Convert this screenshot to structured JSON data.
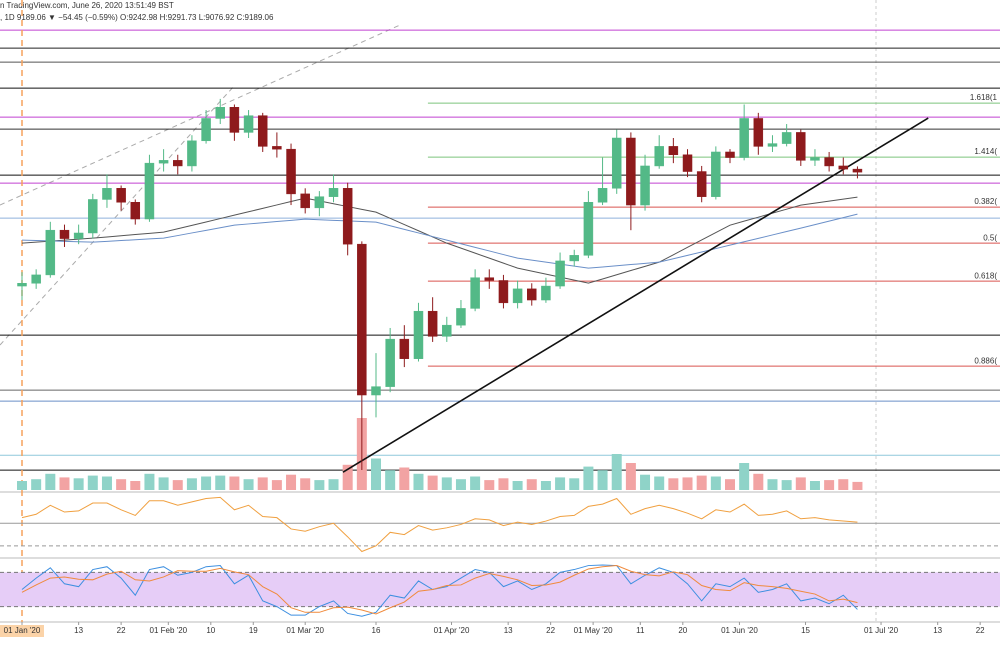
{
  "chart_data": {
    "type": "candlestick",
    "title": "n TradingView.com, June 26, 2020 13:51:49 BST",
    "subtitle": ", 1D  9189.06 ▼ −54.45 (−0.59%) O:9242.98 H:9291.73 L:9076.92 C:9189.06",
    "x": [
      "2020-01-01",
      "2020-01-04",
      "2020-01-07",
      "2020-01-10",
      "2020-01-13",
      "2020-01-16",
      "2020-01-19",
      "2020-01-22",
      "2020-01-25",
      "2020-01-28",
      "2020-01-31",
      "2020-02-03",
      "2020-02-06",
      "2020-02-09",
      "2020-02-12",
      "2020-02-15",
      "2020-02-18",
      "2020-02-21",
      "2020-02-24",
      "2020-02-27",
      "2020-03-01",
      "2020-03-04",
      "2020-03-07",
      "2020-03-10",
      "2020-03-13",
      "2020-03-16",
      "2020-03-19",
      "2020-03-22",
      "2020-03-25",
      "2020-03-28",
      "2020-03-31",
      "2020-04-03",
      "2020-04-06",
      "2020-04-09",
      "2020-04-12",
      "2020-04-15",
      "2020-04-18",
      "2020-04-21",
      "2020-04-24",
      "2020-04-27",
      "2020-04-30",
      "2020-05-03",
      "2020-05-06",
      "2020-05-09",
      "2020-05-12",
      "2020-05-15",
      "2020-05-18",
      "2020-05-21",
      "2020-05-24",
      "2020-05-27",
      "2020-05-30",
      "2020-06-02",
      "2020-06-05",
      "2020-06-08",
      "2020-06-11",
      "2020-06-14",
      "2020-06-17",
      "2020-06-20",
      "2020-06-23",
      "2020-06-26"
    ],
    "open": [
      7150,
      7200,
      7350,
      8150,
      8000,
      8100,
      8700,
      8900,
      8650,
      8350,
      9350,
      9400,
      9300,
      9750,
      10150,
      10350,
      9900,
      10200,
      9650,
      9600,
      8800,
      8550,
      8750,
      8900,
      7900,
      5200,
      5350,
      6200,
      5850,
      6700,
      6250,
      6450,
      6750,
      7300,
      7250,
      6850,
      7100,
      6900,
      7150,
      7600,
      7700,
      8650,
      8900,
      9800,
      8600,
      9300,
      9650,
      9500,
      9200,
      8750,
      9550,
      9450,
      10150,
      9650,
      9700,
      9900,
      9400,
      9450,
      9300,
      9242.98
    ],
    "high": [
      7400,
      7450,
      8300,
      8250,
      8250,
      8800,
      9150,
      8950,
      8700,
      9500,
      9600,
      9500,
      9850,
      10300,
      10500,
      10400,
      10300,
      10250,
      9900,
      9700,
      8900,
      8850,
      9150,
      9000,
      7950,
      5950,
      6400,
      6450,
      6850,
      6950,
      6600,
      6900,
      7450,
      7450,
      7350,
      7250,
      7200,
      7300,
      7750,
      7800,
      8850,
      9450,
      9950,
      9900,
      9500,
      9850,
      9800,
      9600,
      9300,
      9650,
      9600,
      10400,
      10250,
      9850,
      10050,
      9950,
      9600,
      9550,
      9450,
      9291.73
    ],
    "low": [
      6900,
      7100,
      7300,
      7850,
      7900,
      8000,
      8550,
      8500,
      8250,
      8300,
      9200,
      9150,
      9200,
      9700,
      10050,
      9750,
      9800,
      9550,
      9450,
      8600,
      8450,
      8400,
      8650,
      7700,
      3858,
      4800,
      5250,
      5700,
      5800,
      6150,
      6150,
      6400,
      6700,
      7100,
      6750,
      6750,
      6800,
      6850,
      7100,
      7500,
      7650,
      8600,
      8800,
      8150,
      8500,
      9250,
      9350,
      9100,
      8650,
      8700,
      9350,
      9400,
      9500,
      9550,
      9650,
      9300,
      9300,
      9200,
      9150,
      9076.92
    ],
    "close": [
      7200,
      7350,
      8150,
      8000,
      8100,
      8700,
      8900,
      8650,
      8350,
      9350,
      9400,
      9300,
      9750,
      10150,
      10350,
      9900,
      10200,
      9650,
      9600,
      8800,
      8550,
      8750,
      8900,
      7900,
      5200,
      5350,
      6200,
      5850,
      6700,
      6250,
      6450,
      6750,
      7300,
      7250,
      6850,
      7100,
      6900,
      7150,
      7600,
      7700,
      8650,
      8900,
      9800,
      8600,
      9300,
      9650,
      9500,
      9200,
      8750,
      9550,
      9450,
      10150,
      9650,
      9700,
      9900,
      9400,
      9450,
      9300,
      9243,
      9189.06
    ],
    "up_color": "#53b987",
    "down_color": "#8e1a1c",
    "ylim": [
      3500,
      12270
    ],
    "xticks": [
      {
        "value": "2020-01-01",
        "label": "01 Jan '20"
      },
      {
        "value": "2020-01-13",
        "label": "13"
      },
      {
        "value": "2020-01-22",
        "label": "22"
      },
      {
        "value": "2020-02-01",
        "label": "01 Feb '20"
      },
      {
        "value": "2020-02-10",
        "label": "10"
      },
      {
        "value": "2020-02-19",
        "label": "19"
      },
      {
        "value": "2020-03-01",
        "label": "01 Mar '20"
      },
      {
        "value": "2020-03-16",
        "label": "16"
      },
      {
        "value": "2020-04-01",
        "label": "01 Apr '20"
      },
      {
        "value": "2020-04-13",
        "label": "13"
      },
      {
        "value": "2020-04-22",
        "label": "22"
      },
      {
        "value": "2020-05-01",
        "label": "01 May '20"
      },
      {
        "value": "2020-05-11",
        "label": "11"
      },
      {
        "value": "2020-05-20",
        "label": "20"
      },
      {
        "value": "2020-06-01",
        "label": "01 Jun '20"
      },
      {
        "value": "2020-06-15",
        "label": "15"
      },
      {
        "value": "2020-07-01",
        "label": "01 Jul '20"
      },
      {
        "value": "2020-07-13",
        "label": "13"
      },
      {
        "value": "2020-07-22",
        "label": "22"
      }
    ],
    "crosshair": {
      "x": "2020-01-01",
      "color": "#f5a25d"
    },
    "ma": [
      {
        "color": "#555555",
        "values": [
          7918,
          7936,
          7954,
          7972,
          7990,
          8008,
          8029,
          8051,
          8072,
          8094,
          8115,
          8176,
          8236,
          8297,
          8358,
          8419,
          8480,
          8541,
          8602,
          8663,
          8724,
          8674,
          8624,
          8573,
          8523,
          8473,
          8362,
          8251,
          8140,
          8029,
          7918,
          7829,
          7739,
          7650,
          7560,
          7471,
          7417,
          7363,
          7310,
          7256,
          7202,
          7277,
          7352,
          7428,
          7503,
          7578,
          7710,
          7843,
          7975,
          8108,
          8240,
          8312,
          8383,
          8455,
          8526,
          8598,
          8634,
          8670,
          8706,
          8742
        ]
      },
      {
        "color": "#6a8fc8",
        "values": [
          7972,
          7965,
          7958,
          7950,
          7943,
          7936,
          7950,
          7965,
          7979,
          7994,
          8008,
          8054,
          8101,
          8147,
          8194,
          8240,
          8262,
          8283,
          8305,
          8326,
          8348,
          8337,
          8326,
          8316,
          8305,
          8294,
          8230,
          8165,
          8101,
          8036,
          7972,
          7908,
          7843,
          7779,
          7714,
          7650,
          7614,
          7578,
          7543,
          7507,
          7471,
          7492,
          7514,
          7535,
          7557,
          7578,
          7639,
          7700,
          7760,
          7821,
          7882,
          7943,
          8004,
          8065,
          8126,
          8187,
          8250,
          8312,
          8375,
          8437
        ]
      }
    ],
    "levels": [
      {
        "price": 11731,
        "color": "#c040d0"
      },
      {
        "price": 11409,
        "color": "#222222"
      },
      {
        "price": 11158,
        "color": "#555555"
      },
      {
        "price": 10693,
        "color": "#111111"
      },
      {
        "price": 10174,
        "color": "#c040d0"
      },
      {
        "price": 9959,
        "color": "#333333"
      },
      {
        "price": 9135,
        "color": "#111111"
      },
      {
        "price": 8992,
        "color": "#c040d0"
      },
      {
        "price": 8366,
        "color": "#8fb0dc"
      },
      {
        "price": 6271,
        "color": "#111111"
      },
      {
        "price": 5287,
        "color": "#666666"
      },
      {
        "price": 5090,
        "color": "#6a8fc8"
      },
      {
        "price": 4123,
        "color": "#8fc8dc"
      },
      {
        "price": 3855,
        "color": "#111111"
      }
    ],
    "fibs": {
      "start": "2020-03-27",
      "items": [
        {
          "label": "1.618(1",
          "price": 10424,
          "color": "#7cc47c"
        },
        {
          "label": "1.414(",
          "price": 9458,
          "color": "#7cc47c"
        },
        {
          "label": "0.382(",
          "price": 8563,
          "color": "#d9534f"
        },
        {
          "label": "0.5(",
          "price": 7918,
          "color": "#d9534f"
        },
        {
          "label": "0.618(",
          "price": 7238,
          "color": "#d9534f"
        },
        {
          "label": "0.886(",
          "price": 5716,
          "color": "#d9534f"
        }
      ]
    },
    "trendline": {
      "color": "#111111",
      "x": [
        "2020-03-09",
        "2020-07-11"
      ],
      "y": [
        3819,
        10156
      ]
    },
    "volume": {
      "ylim": [
        0,
        100
      ],
      "up_color": "#8fd3c8",
      "down_color": "#f2a3a3",
      "values": [
        10,
        12,
        18,
        14,
        13,
        16,
        15,
        12,
        10,
        18,
        14,
        11,
        13,
        15,
        16,
        15,
        12,
        14,
        11,
        17,
        13,
        11,
        12,
        28,
        80,
        35,
        22,
        25,
        18,
        16,
        14,
        12,
        15,
        11,
        13,
        10,
        12,
        10,
        14,
        13,
        26,
        22,
        40,
        30,
        17,
        15,
        13,
        14,
        16,
        15,
        12,
        30,
        18,
        12,
        11,
        14,
        10,
        11,
        12,
        9
      ]
    },
    "rsi": {
      "color": "#f0a040",
      "ylim": [
        21,
        76
      ],
      "levels": [
        50,
        30
      ],
      "values": [
        55,
        58,
        66,
        60,
        61,
        68,
        68,
        62,
        57,
        70,
        70,
        66,
        69,
        72,
        73,
        62,
        66,
        56,
        55,
        45,
        43,
        47,
        50,
        38,
        25,
        30,
        42,
        40,
        48,
        44,
        46,
        49,
        54,
        53,
        48,
        51,
        49,
        52,
        56,
        57,
        65,
        67,
        72,
        58,
        63,
        66,
        63,
        59,
        54,
        62,
        60,
        67,
        57,
        58,
        61,
        54,
        55,
        53,
        52,
        51
      ]
    },
    "stoch": {
      "ylim": [
        0,
        100
      ],
      "levels": [
        80,
        20
      ],
      "band_color": "#e6cdf7",
      "series": [
        {
          "color": "#3d8fe0",
          "values": [
            50,
            70,
            88,
            60,
            55,
            85,
            90,
            70,
            40,
            85,
            90,
            75,
            80,
            90,
            92,
            60,
            75,
            30,
            20,
            5,
            5,
            20,
            30,
            8,
            3,
            10,
            40,
            35,
            65,
            50,
            55,
            70,
            85,
            80,
            55,
            65,
            50,
            60,
            80,
            85,
            92,
            93,
            92,
            60,
            75,
            88,
            80,
            60,
            30,
            60,
            55,
            70,
            45,
            50,
            60,
            30,
            35,
            25,
            40,
            15
          ]
        },
        {
          "color": "#f08a3c",
          "values": [
            45,
            58,
            70,
            72,
            68,
            67,
            77,
            82,
            67,
            65,
            72,
            83,
            82,
            82,
            87,
            81,
            76,
            55,
            42,
            18,
            10,
            10,
            18,
            19,
            14,
            7,
            18,
            28,
            47,
            50,
            57,
            58,
            70,
            78,
            73,
            67,
            57,
            58,
            63,
            75,
            86,
            90,
            92,
            82,
            76,
            74,
            81,
            76,
            57,
            50,
            48,
            62,
            57,
            55,
            52,
            47,
            42,
            30,
            33,
            27
          ]
        }
      ]
    }
  }
}
